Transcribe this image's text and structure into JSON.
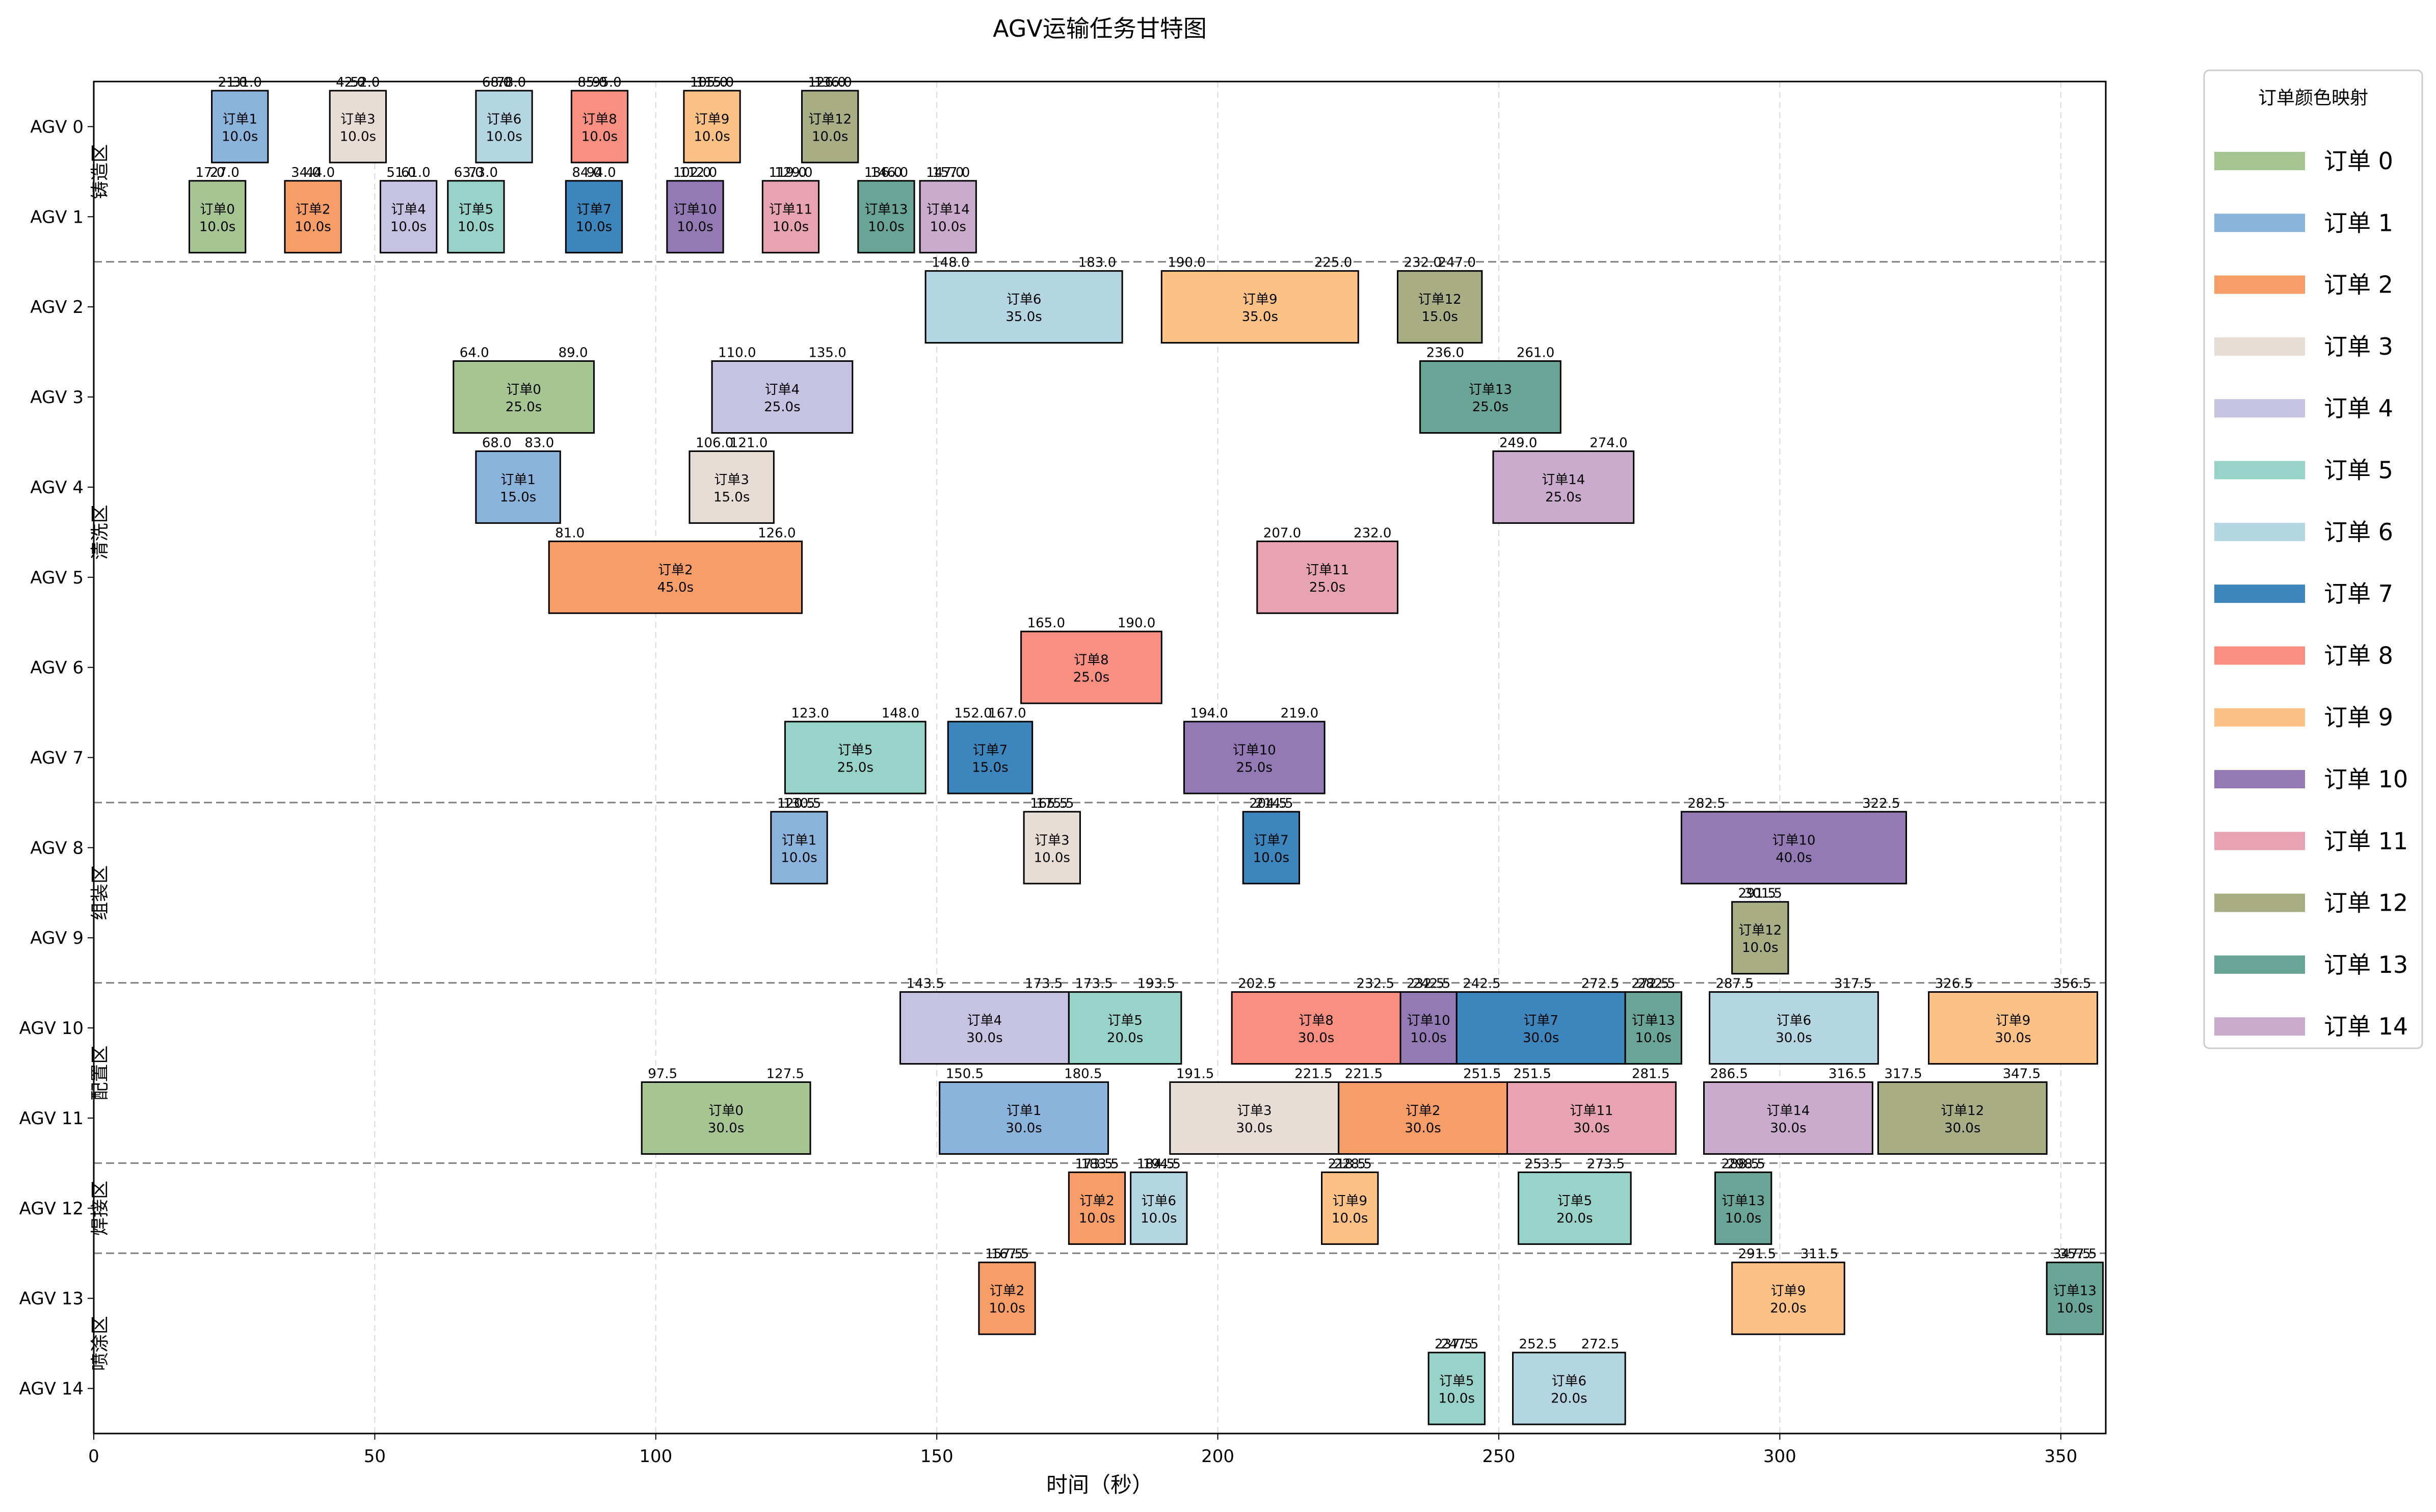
{
  "chart_data": {
    "type": "gantt",
    "title": "AGV运输任务甘特图",
    "xlabel": "时间（秒）",
    "xlim": [
      0,
      358
    ],
    "x_ticks": [
      0,
      50,
      100,
      150,
      200,
      250,
      300,
      350
    ],
    "grid": true,
    "legend_title": "订单颜色映射",
    "legend_placement": "right-outside",
    "rows": [
      "AGV 0",
      "AGV 1",
      "AGV 2",
      "AGV 3",
      "AGV 4",
      "AGV 5",
      "AGV 6",
      "AGV 7",
      "AGV 8",
      "AGV 9",
      "AGV 10",
      "AGV 11",
      "AGV 12",
      "AGV 13",
      "AGV 14"
    ],
    "zones": [
      {
        "label": "铸造区",
        "first_row": 0,
        "last_row": 1
      },
      {
        "label": "清洗区",
        "first_row": 2,
        "last_row": 7
      },
      {
        "label": "组装区",
        "first_row": 8,
        "last_row": 9
      },
      {
        "label": "配置区",
        "first_row": 10,
        "last_row": 11
      },
      {
        "label": "焊接区",
        "first_row": 12,
        "last_row": 12
      },
      {
        "label": "喷涂区",
        "first_row": 13,
        "last_row": 14
      }
    ],
    "orders": [
      {
        "id": 0,
        "label": "订单 0",
        "short": "订单0",
        "color": "#a5c592"
      },
      {
        "id": 1,
        "label": "订单 1",
        "short": "订单1",
        "color": "#8ab4dc"
      },
      {
        "id": 2,
        "label": "订单 2",
        "short": "订单2",
        "color": "#f79e68"
      },
      {
        "id": 3,
        "label": "订单 3",
        "short": "订单3",
        "color": "#e8ddd5"
      },
      {
        "id": 4,
        "label": "订单 4",
        "short": "订单4",
        "color": "#c6c2e2"
      },
      {
        "id": 5,
        "label": "订单 5",
        "short": "订单5",
        "color": "#98d3c9"
      },
      {
        "id": 6,
        "label": "订单 6",
        "short": "订单6",
        "color": "#b4d6e3"
      },
      {
        "id": 7,
        "label": "订单 7",
        "short": "订单7",
        "color": "#3d86bd"
      },
      {
        "id": 8,
        "label": "订单 8",
        "short": "订单8",
        "color": "#f88f81"
      },
      {
        "id": 9,
        "label": "订单 9",
        "short": "订单9",
        "color": "#fcc185"
      },
      {
        "id": 10,
        "label": "订单 10",
        "short": "订单10",
        "color": "#937ab5"
      },
      {
        "id": 11,
        "label": "订单 11",
        "short": "订单11",
        "color": "#e8a3b2"
      },
      {
        "id": 12,
        "label": "订单 12",
        "short": "订单12",
        "color": "#a8ad84"
      },
      {
        "id": 13,
        "label": "订单 13",
        "short": "订单13",
        "color": "#68a597"
      },
      {
        "id": 14,
        "label": "订单 14",
        "short": "订单14",
        "color": "#cbabcd"
      }
    ],
    "tasks": [
      {
        "row": 0,
        "order": 1,
        "start": 21.0,
        "end": 31.0,
        "start_label": "21.0",
        "end_label": "31.0",
        "duration": "10.0s"
      },
      {
        "row": 0,
        "order": 3,
        "start": 42.0,
        "end": 52.0,
        "start_label": "42.0",
        "end_label": "52.0",
        "duration": "10.0s"
      },
      {
        "row": 0,
        "order": 6,
        "start": 68.0,
        "end": 78.0,
        "start_label": "68.0",
        "end_label": "78.0",
        "duration": "10.0s"
      },
      {
        "row": 0,
        "order": 8,
        "start": 85.0,
        "end": 95.0,
        "start_label": "85.0",
        "end_label": "95.0",
        "duration": "10.0s"
      },
      {
        "row": 0,
        "order": 9,
        "start": 105.0,
        "end": 115.0,
        "start_label": "105.0",
        "end_label": "115.0",
        "duration": "10.0s"
      },
      {
        "row": 0,
        "order": 12,
        "start": 126.0,
        "end": 136.0,
        "start_label": "126.0",
        "end_label": "136.0",
        "duration": "10.0s"
      },
      {
        "row": 1,
        "order": 0,
        "start": 17.0,
        "end": 27.0,
        "start_label": "17.0",
        "end_label": "27.0",
        "duration": "10.0s"
      },
      {
        "row": 1,
        "order": 2,
        "start": 34.0,
        "end": 44.0,
        "start_label": "34.0",
        "end_label": "44.0",
        "duration": "10.0s"
      },
      {
        "row": 1,
        "order": 4,
        "start": 51.0,
        "end": 61.0,
        "start_label": "51.0",
        "end_label": "61.0",
        "duration": "10.0s"
      },
      {
        "row": 1,
        "order": 5,
        "start": 63.0,
        "end": 73.0,
        "start_label": "63.0",
        "end_label": "73.0",
        "duration": "10.0s"
      },
      {
        "row": 1,
        "order": 7,
        "start": 84.0,
        "end": 94.0,
        "start_label": "84.0",
        "end_label": "94.0",
        "duration": "10.0s"
      },
      {
        "row": 1,
        "order": 10,
        "start": 102.0,
        "end": 112.0,
        "start_label": "102.0",
        "end_label": "112.0",
        "duration": "10.0s"
      },
      {
        "row": 1,
        "order": 11,
        "start": 119.0,
        "end": 129.0,
        "start_label": "119.0",
        "end_label": "129.0",
        "duration": "10.0s"
      },
      {
        "row": 1,
        "order": 13,
        "start": 136.0,
        "end": 146.0,
        "start_label": "136.0",
        "end_label": "146.0",
        "duration": "10.0s"
      },
      {
        "row": 1,
        "order": 14,
        "start": 147.0,
        "end": 157.0,
        "start_label": "147.0",
        "end_label": "157.0",
        "duration": "10.0s"
      },
      {
        "row": 2,
        "order": 6,
        "start": 148.0,
        "end": 183.0,
        "start_label": "148.0",
        "end_label": "183.0",
        "duration": "35.0s"
      },
      {
        "row": 2,
        "order": 9,
        "start": 190.0,
        "end": 225.0,
        "start_label": "190.0",
        "end_label": "225.0",
        "duration": "35.0s"
      },
      {
        "row": 2,
        "order": 12,
        "start": 232.0,
        "end": 247.0,
        "start_label": "232.0",
        "end_label": "247.0",
        "duration": "15.0s"
      },
      {
        "row": 3,
        "order": 0,
        "start": 64.0,
        "end": 89.0,
        "start_label": "64.0",
        "end_label": "89.0",
        "duration": "25.0s"
      },
      {
        "row": 3,
        "order": 4,
        "start": 110.0,
        "end": 135.0,
        "start_label": "110.0",
        "end_label": "135.0",
        "duration": "25.0s"
      },
      {
        "row": 3,
        "order": 13,
        "start": 236.0,
        "end": 261.0,
        "start_label": "236.0",
        "end_label": "261.0",
        "duration": "25.0s"
      },
      {
        "row": 4,
        "order": 1,
        "start": 68.0,
        "end": 83.0,
        "start_label": "68.0",
        "end_label": "83.0",
        "duration": "15.0s"
      },
      {
        "row": 4,
        "order": 3,
        "start": 106.0,
        "end": 121.0,
        "start_label": "106.0",
        "end_label": "121.0",
        "duration": "15.0s"
      },
      {
        "row": 4,
        "order": 14,
        "start": 249.0,
        "end": 274.0,
        "start_label": "249.0",
        "end_label": "274.0",
        "duration": "25.0s"
      },
      {
        "row": 5,
        "order": 2,
        "start": 81.0,
        "end": 126.0,
        "start_label": "81.0",
        "end_label": "126.0",
        "duration": "45.0s"
      },
      {
        "row": 5,
        "order": 11,
        "start": 207.0,
        "end": 232.0,
        "start_label": "207.0",
        "end_label": "232.0",
        "duration": "25.0s"
      },
      {
        "row": 6,
        "order": 8,
        "start": 165.0,
        "end": 190.0,
        "start_label": "165.0",
        "end_label": "190.0",
        "duration": "25.0s"
      },
      {
        "row": 7,
        "order": 5,
        "start": 123.0,
        "end": 148.0,
        "start_label": "123.0",
        "end_label": "148.0",
        "duration": "25.0s"
      },
      {
        "row": 7,
        "order": 7,
        "start": 152.0,
        "end": 167.0,
        "start_label": "152.0",
        "end_label": "167.0",
        "duration": "15.0s"
      },
      {
        "row": 7,
        "order": 10,
        "start": 194.0,
        "end": 219.0,
        "start_label": "194.0",
        "end_label": "219.0",
        "duration": "25.0s"
      },
      {
        "row": 8,
        "order": 1,
        "start": 120.5,
        "end": 130.5,
        "start_label": "120.5",
        "end_label": "130.5",
        "duration": "10.0s"
      },
      {
        "row": 8,
        "order": 3,
        "start": 165.5,
        "end": 175.5,
        "start_label": "165.5",
        "end_label": "175.5",
        "duration": "10.0s"
      },
      {
        "row": 8,
        "order": 7,
        "start": 204.5,
        "end": 214.5,
        "start_label": "204.5",
        "end_label": "214.5",
        "duration": "10.0s"
      },
      {
        "row": 8,
        "order": 10,
        "start": 282.5,
        "end": 322.5,
        "start_label": "282.5",
        "end_label": "322.5",
        "duration": "40.0s"
      },
      {
        "row": 9,
        "order": 12,
        "start": 291.5,
        "end": 301.5,
        "start_label": "291.5",
        "end_label": "301.5",
        "duration": "10.0s"
      },
      {
        "row": 10,
        "order": 4,
        "start": 143.5,
        "end": 173.5,
        "start_label": "143.5",
        "end_label": "173.5",
        "duration": "30.0s"
      },
      {
        "row": 10,
        "order": 5,
        "start": 173.5,
        "end": 193.5,
        "start_label": "173.5",
        "end_label": "193.5",
        "duration": "20.0s"
      },
      {
        "row": 10,
        "order": 8,
        "start": 202.5,
        "end": 232.5,
        "start_label": "202.5",
        "end_label": "232.5",
        "duration": "30.0s"
      },
      {
        "row": 10,
        "order": 10,
        "start": 232.5,
        "end": 242.5,
        "start_label": "232.5",
        "end_label": "242.5",
        "duration": "10.0s"
      },
      {
        "row": 10,
        "order": 7,
        "start": 242.5,
        "end": 272.5,
        "start_label": "242.5",
        "end_label": "272.5",
        "duration": "30.0s"
      },
      {
        "row": 10,
        "order": 13,
        "start": 272.5,
        "end": 282.5,
        "start_label": "272.5",
        "end_label": "282.5",
        "duration": "10.0s"
      },
      {
        "row": 10,
        "order": 6,
        "start": 287.5,
        "end": 317.5,
        "start_label": "287.5",
        "end_label": "317.5",
        "duration": "30.0s"
      },
      {
        "row": 10,
        "order": 9,
        "start": 326.5,
        "end": 356.5,
        "start_label": "326.5",
        "end_label": "356.5",
        "duration": "30.0s"
      },
      {
        "row": 11,
        "order": 0,
        "start": 97.5,
        "end": 127.5,
        "start_label": "97.5",
        "end_label": "127.5",
        "duration": "30.0s"
      },
      {
        "row": 11,
        "order": 1,
        "start": 150.5,
        "end": 180.5,
        "start_label": "150.5",
        "end_label": "180.5",
        "duration": "30.0s"
      },
      {
        "row": 11,
        "order": 3,
        "start": 191.5,
        "end": 221.5,
        "start_label": "191.5",
        "end_label": "221.5",
        "duration": "30.0s"
      },
      {
        "row": 11,
        "order": 2,
        "start": 221.5,
        "end": 251.5,
        "start_label": "221.5",
        "end_label": "251.5",
        "duration": "30.0s"
      },
      {
        "row": 11,
        "order": 11,
        "start": 251.5,
        "end": 281.5,
        "start_label": "251.5",
        "end_label": "281.5",
        "duration": "30.0s"
      },
      {
        "row": 11,
        "order": 14,
        "start": 286.5,
        "end": 316.5,
        "start_label": "286.5",
        "end_label": "316.5",
        "duration": "30.0s"
      },
      {
        "row": 11,
        "order": 12,
        "start": 317.5,
        "end": 347.5,
        "start_label": "317.5",
        "end_label": "347.5",
        "duration": "30.0s"
      },
      {
        "row": 12,
        "order": 2,
        "start": 173.5,
        "end": 183.5,
        "start_label": "173.5",
        "end_label": "183.5",
        "duration": "10.0s"
      },
      {
        "row": 12,
        "order": 6,
        "start": 184.5,
        "end": 194.5,
        "start_label": "184.5",
        "end_label": "194.5",
        "duration": "10.0s"
      },
      {
        "row": 12,
        "order": 9,
        "start": 218.5,
        "end": 228.5,
        "start_label": "218.5",
        "end_label": "228.5",
        "duration": "10.0s"
      },
      {
        "row": 12,
        "order": 5,
        "start": 253.5,
        "end": 273.5,
        "start_label": "253.5",
        "end_label": "273.5",
        "duration": "20.0s"
      },
      {
        "row": 12,
        "order": 13,
        "start": 288.5,
        "end": 298.5,
        "start_label": "288.5",
        "end_label": "298.5",
        "duration": "10.0s"
      },
      {
        "row": 13,
        "order": 2,
        "start": 157.5,
        "end": 167.5,
        "start_label": "157.5",
        "end_label": "167.5",
        "duration": "10.0s"
      },
      {
        "row": 13,
        "order": 9,
        "start": 291.5,
        "end": 311.5,
        "start_label": "291.5",
        "end_label": "311.5",
        "duration": "20.0s"
      },
      {
        "row": 13,
        "order": 13,
        "start": 347.5,
        "end": 357.5,
        "start_label": "347.5",
        "end_label": "357.5",
        "duration": "10.0s"
      },
      {
        "row": 14,
        "order": 5,
        "start": 237.5,
        "end": 247.5,
        "start_label": "237.5",
        "end_label": "247.5",
        "duration": "10.0s"
      },
      {
        "row": 14,
        "order": 6,
        "start": 252.5,
        "end": 272.5,
        "start_label": "252.5",
        "end_label": "272.5",
        "duration": "20.0s"
      }
    ]
  }
}
